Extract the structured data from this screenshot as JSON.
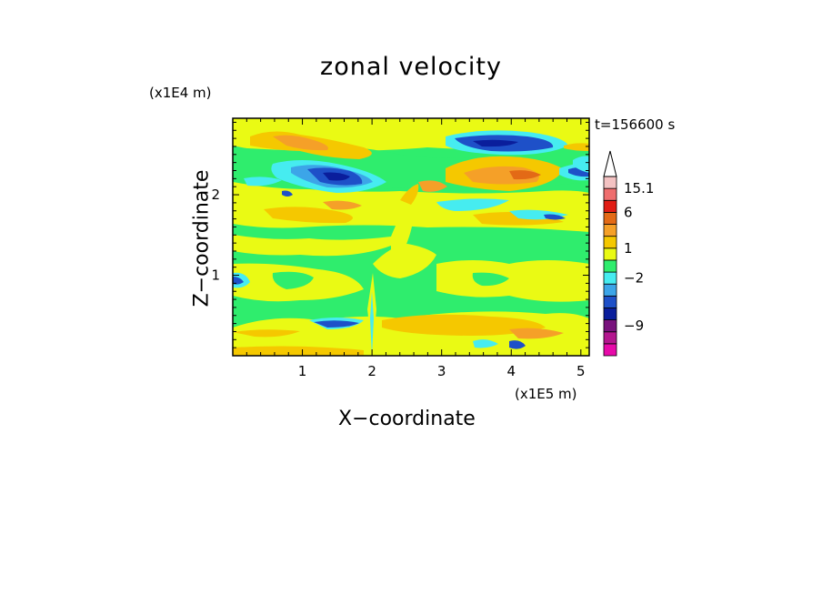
{
  "chart_data": {
    "type": "heatmap",
    "title": "zonal velocity",
    "xlabel": "X−coordinate",
    "ylabel": "Z−coordinate",
    "x_multiplier": "(x1E5 m)",
    "y_multiplier": "(x1E4 m)",
    "annotation": "t=156600 s",
    "xlim": [
      0,
      5.12
    ],
    "ylim": [
      0,
      2.95
    ],
    "x_ticks": [
      {
        "value": 1,
        "label": "1"
      },
      {
        "value": 2,
        "label": "2"
      },
      {
        "value": 3,
        "label": "3"
      },
      {
        "value": 4,
        "label": "4"
      },
      {
        "value": 5,
        "label": "5"
      }
    ],
    "y_ticks": [
      {
        "value": 1,
        "label": "1"
      },
      {
        "value": 2,
        "label": "2"
      }
    ],
    "colorbar": {
      "levels": [
        {
          "color": "#e70aa9"
        },
        {
          "color": "#b4168f"
        },
        {
          "color": "#78127d"
        },
        {
          "color": "#0a1e9c"
        },
        {
          "color": "#1e50c8"
        },
        {
          "color": "#3ca5e8"
        },
        {
          "color": "#46ecf0"
        },
        {
          "color": "#2fed6d"
        },
        {
          "color": "#eafa14"
        },
        {
          "color": "#f5c800"
        },
        {
          "color": "#f5a028"
        },
        {
          "color": "#e36a16"
        },
        {
          "color": "#e11c14"
        },
        {
          "color": "#ef6e6e"
        },
        {
          "color": "#f3c2c2"
        }
      ],
      "labels": [
        {
          "text": "15.1",
          "level_edge": 14
        },
        {
          "text": "6",
          "level_edge": 12
        },
        {
          "text": "1",
          "level_edge": 9
        },
        {
          "text": "−2",
          "level_edge": 6.5
        },
        {
          "text": "−9",
          "level_edge": 2.5
        }
      ],
      "extend_max": true
    },
    "regions": [
      {
        "level": "yellow",
        "description": "upper background band",
        "x": [
          0,
          5.12
        ],
        "z": [
          2.6,
          2.95
        ]
      },
      {
        "level": "green",
        "description": "band",
        "x": [
          0,
          5.12
        ],
        "z": [
          2.35,
          2.6
        ]
      },
      {
        "level": "yellow",
        "description": "band",
        "x": [
          0,
          5.12
        ],
        "z": [
          1.95,
          2.35
        ]
      },
      {
        "level": "green",
        "description": "middle field",
        "x": [
          0,
          5.12
        ],
        "z": [
          0.4,
          1.95
        ]
      },
      {
        "level": "yellow",
        "description": "lower band",
        "x": [
          0,
          5.12
        ],
        "z": [
          0,
          0.4
        ]
      }
    ],
    "extremes": [
      {
        "value": "min",
        "x": 1.5,
        "z": 2.3
      },
      {
        "value": "min",
        "x": 3.6,
        "z": 2.65
      },
      {
        "value": "max",
        "x": 4.5,
        "z": 2.35
      },
      {
        "value": "max",
        "x": 1.2,
        "z": 2.6
      }
    ]
  }
}
